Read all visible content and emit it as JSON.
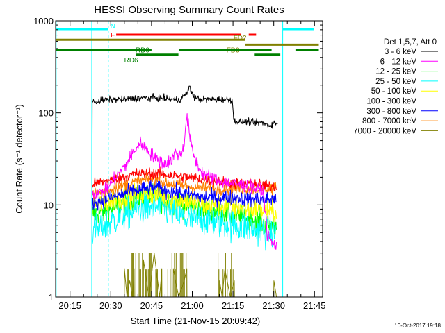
{
  "chart_data": {
    "type": "line",
    "title": "HESSI Observing Summary Count Rates",
    "xlabel": "Start Time (21-Nov-15 20:09:42)",
    "ylabel": "Count Rate (s⁻¹ detector⁻¹)",
    "x_unit": "minutes of day (UT)",
    "xlim": [
      1209.7,
      1308
    ],
    "ylim": [
      1,
      1000
    ],
    "yscale": "log",
    "x_ticks": [
      {
        "value": 1215,
        "label": "20:15"
      },
      {
        "value": 1230,
        "label": "20:30"
      },
      {
        "value": 1245,
        "label": "20:45"
      },
      {
        "value": 1260,
        "label": "21:00"
      },
      {
        "value": 1275,
        "label": "21:15"
      },
      {
        "value": 1290,
        "label": "21:30"
      },
      {
        "value": 1305,
        "label": "21:45"
      }
    ],
    "y_ticks": [
      {
        "value": 1,
        "label": "1"
      },
      {
        "value": 10,
        "label": "10"
      },
      {
        "value": 100,
        "label": "100"
      },
      {
        "value": 1000,
        "label": "1000"
      }
    ],
    "legend_header": "Det 1,5,7, Att 0",
    "legend_position": "right",
    "series": [
      {
        "name": "3 - 6 keV",
        "color": "#000000",
        "noise": 0.035,
        "x": [
          1223.0,
          1223.1,
          1224,
          1226,
          1228,
          1232,
          1236,
          1240,
          1248,
          1255,
          1256.5,
          1258,
          1259,
          1260.5,
          1263,
          1268,
          1272,
          1274.8,
          1275.2,
          1277,
          1280,
          1283,
          1286,
          1287.8,
          1288.5,
          1290,
          1291.5
        ],
        "y": [
          1,
          128,
          132,
          135,
          138,
          140,
          140,
          145,
          145,
          138,
          148,
          165,
          190,
          148,
          140,
          140,
          140,
          138,
          82,
          80,
          80,
          78,
          78,
          74,
          73,
          77,
          78
        ]
      },
      {
        "name": "6 - 12 keV",
        "color": "#ff00ff",
        "noise": 0.07,
        "x": [
          1223.1,
          1228,
          1232,
          1236,
          1238,
          1241,
          1244,
          1246,
          1248,
          1250,
          1252,
          1253,
          1254,
          1255,
          1256,
          1257,
          1257.5,
          1258,
          1259,
          1260,
          1261,
          1262,
          1263,
          1264,
          1270,
          1275,
          1280,
          1286,
          1287.5,
          1289,
          1291
        ],
        "y": [
          13,
          14,
          20,
          28,
          36,
          47,
          38,
          33,
          30,
          28,
          30,
          33,
          38,
          35,
          36,
          45,
          70,
          90,
          60,
          38,
          32,
          27,
          24,
          22,
          18,
          17,
          16,
          14,
          5,
          4,
          3.5
        ]
      },
      {
        "name": "12 - 25 keV",
        "color": "#00ff00",
        "noise": 0.13,
        "x": [
          1223.1,
          1228,
          1234,
          1240,
          1246,
          1252,
          1258,
          1264,
          1270,
          1276,
          1282,
          1288,
          1291
        ],
        "y": [
          8,
          8.5,
          10,
          12,
          12.5,
          11,
          10,
          9,
          8.5,
          7.5,
          7,
          6,
          6
        ]
      },
      {
        "name": "25 - 50 keV",
        "color": "#00ffff",
        "noise": 0.17,
        "x": [
          1223.1,
          1228,
          1234,
          1240,
          1246,
          1252,
          1258,
          1264,
          1270,
          1276,
          1282,
          1288,
          1291
        ],
        "y": [
          5,
          6,
          7.5,
          9,
          9.5,
          8.5,
          7,
          7,
          6.5,
          6,
          5.5,
          5,
          5
        ]
      },
      {
        "name": "50 - 100 keV",
        "color": "#ffff00",
        "noise": 0.12,
        "x": [
          1223.1,
          1228,
          1234,
          1240,
          1246,
          1252,
          1258,
          1264,
          1270,
          1276,
          1282,
          1288,
          1291
        ],
        "y": [
          10,
          10.5,
          12,
          13,
          13.5,
          12,
          11,
          10,
          10,
          9.5,
          9,
          8.5,
          8.5
        ]
      },
      {
        "name": "100 - 300 keV",
        "color": "#ff0000",
        "noise": 0.06,
        "x": [
          1223.1,
          1228,
          1234,
          1240,
          1246,
          1252,
          1258,
          1264,
          1270,
          1276,
          1282,
          1288,
          1291
        ],
        "y": [
          17,
          18,
          20,
          22,
          22,
          21,
          20,
          19,
          18,
          17,
          17,
          16,
          16
        ]
      },
      {
        "name": "300 - 800 keV",
        "color": "#0000ff",
        "noise": 0.08,
        "x": [
          1223.1,
          1228,
          1234,
          1240,
          1246,
          1252,
          1258,
          1264,
          1270,
          1276,
          1282,
          1288,
          1291
        ],
        "y": [
          10.5,
          11.5,
          13,
          14.5,
          15.5,
          14,
          13,
          12,
          12,
          12,
          11.5,
          11.5,
          11.5
        ]
      },
      {
        "name": "800 - 7000 keV",
        "color": "#ff8000",
        "noise": 0.07,
        "x": [
          1223.1,
          1228,
          1234,
          1240,
          1246,
          1252,
          1258,
          1264,
          1270,
          1276,
          1282,
          1288,
          1291
        ],
        "y": [
          13,
          14,
          16,
          18,
          19,
          17,
          16,
          15,
          15,
          15,
          15,
          15,
          15
        ]
      },
      {
        "name": "7000 - 20000 keV",
        "color": "#808000",
        "noise": 0,
        "x": [
          1223.0,
          1223.05,
          1223.1,
          1235.0,
          1235.05,
          1236,
          1237,
          1238,
          1238.6,
          1238.65,
          1242.0,
          1242.05,
          1244,
          1246,
          1248,
          1248.8,
          1248.85,
          1253,
          1253.05,
          1255,
          1257,
          1258,
          1258.05,
          1270,
          1270.05,
          1271,
          1272,
          1274,
          1275.5,
          1275.55,
          1290,
          1290.05,
          1291,
          1291.05
        ],
        "y": [
          3,
          1.3,
          1,
          1,
          2,
          1,
          1.5,
          1,
          2,
          1,
          1,
          2.5,
          1,
          3,
          1,
          2,
          1,
          1,
          2,
          1,
          1.5,
          2,
          1,
          1,
          1.5,
          1,
          2,
          1,
          1.5,
          1,
          1,
          1.5,
          1,
          1
        ]
      }
    ],
    "state_bars": [
      {
        "label": "N",
        "color": "#00ffff",
        "segments": [
          [
            1209.9,
            1229.1
          ],
          [
            1293.3,
            1304.8
          ]
        ],
        "level": 1.0
      },
      {
        "label": "F",
        "color": "#ff0000",
        "segments": [
          [
            1232.0,
            1278.0
          ],
          [
            1280.8,
            1283.5
          ]
        ],
        "level": 2.0
      },
      {
        "label": "FD2",
        "color": "#808000",
        "segments": [
          [
            1209.9,
            1279.5
          ]
        ],
        "level": 2.9
      },
      {
        "label": "FD3",
        "color": "#808000",
        "segments": [
          [
            1279.5,
            1306.6
          ]
        ],
        "level": 3.8
      },
      {
        "label": "RD0",
        "color": "#008000",
        "segments": [
          [
            1209.9,
            1245.0
          ],
          [
            1255.0,
            1289.2
          ],
          [
            1298.0,
            1306.6
          ]
        ],
        "level": 4.7
      },
      {
        "label": "RD6",
        "color": "#008000",
        "segments": [
          [
            1239.3,
            1254.9
          ],
          [
            1283.0,
            1292.4
          ]
        ],
        "level": 5.6
      }
    ],
    "vlines": [
      {
        "x": 1209.9,
        "style": "solid",
        "color": "#00ffff"
      },
      {
        "x": 1223.0,
        "style": "solid",
        "color": "#00ffff"
      },
      {
        "x": 1229.1,
        "style": "dashed",
        "color": "#00ffff"
      },
      {
        "x": 1293.3,
        "style": "solid",
        "color": "#00ffff"
      },
      {
        "x": 1304.8,
        "style": "dashed",
        "color": "#00ffff"
      }
    ],
    "footer": "10-Oct-2017 19:18"
  }
}
